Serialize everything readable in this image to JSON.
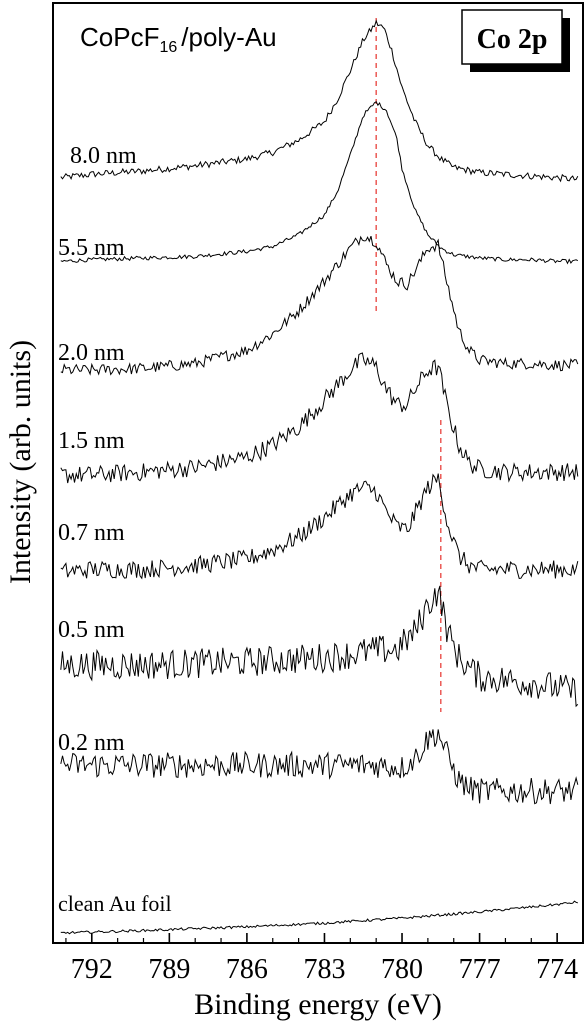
{
  "chart_data": {
    "type": "line",
    "title": "CoPcF16/poly-Au",
    "title_main": "CoPcF",
    "title_sub": "16",
    "title_rest": "/poly-Au",
    "badge": "Co 2p",
    "xlabel": "Binding energy (eV)",
    "ylabel": "Intensity (arb. units)",
    "xlim": [
      793.5,
      773.0
    ],
    "x_reversed": true,
    "xticks": [
      792,
      789,
      786,
      783,
      780,
      777,
      774
    ],
    "y_ticks_shown": false,
    "grid": false,
    "reference_lines": [
      {
        "x": 781.0,
        "color": "#e8413c",
        "style": "dashed"
      },
      {
        "x": 778.5,
        "color": "#e8413c",
        "style": "dashed"
      }
    ],
    "series": [
      {
        "name": "8.0 nm",
        "x": [
          793.2,
          792,
          790,
          788,
          786,
          785,
          784,
          783,
          782.5,
          782,
          781.5,
          781,
          780.7,
          780.4,
          780,
          779.5,
          779,
          778.5,
          778,
          777,
          776,
          775,
          774,
          773.2
        ],
        "y": [
          0.09,
          0.11,
          0.13,
          0.16,
          0.2,
          0.24,
          0.31,
          0.42,
          0.55,
          0.72,
          0.9,
          1.0,
          0.97,
          0.84,
          0.62,
          0.42,
          0.28,
          0.2,
          0.15,
          0.12,
          0.11,
          0.1,
          0.09,
          0.08
        ],
        "noise": 0.02
      },
      {
        "name": "5.5 nm",
        "x": [
          793.2,
          792,
          790,
          788,
          786,
          785,
          784,
          783,
          782.5,
          782,
          781.5,
          781,
          780.6,
          780.2,
          780,
          779.5,
          779,
          778.5,
          778,
          777,
          776,
          775,
          774,
          773.2
        ],
        "y": [
          0.04,
          0.05,
          0.06,
          0.07,
          0.1,
          0.13,
          0.2,
          0.32,
          0.46,
          0.68,
          0.92,
          1.0,
          0.95,
          0.78,
          0.6,
          0.35,
          0.2,
          0.12,
          0.08,
          0.06,
          0.05,
          0.05,
          0.04,
          0.04
        ],
        "noise": 0.012
      },
      {
        "name": "2.0 nm",
        "x": [
          793.2,
          792,
          790,
          788,
          786,
          785,
          784,
          783,
          782,
          781.5,
          781,
          780.6,
          780.2,
          779.8,
          779.5,
          779,
          778.6,
          778.2,
          777.8,
          777.4,
          777,
          776,
          775,
          774,
          773.2
        ],
        "y": [
          0.06,
          0.06,
          0.07,
          0.1,
          0.18,
          0.28,
          0.42,
          0.6,
          0.8,
          0.88,
          0.84,
          0.7,
          0.6,
          0.58,
          0.66,
          0.8,
          0.82,
          0.55,
          0.3,
          0.18,
          0.12,
          0.1,
          0.1,
          0.09,
          0.09
        ],
        "noise": 0.035
      },
      {
        "name": "1.5 nm",
        "x": [
          793.2,
          792,
          790,
          788,
          786,
          785,
          784,
          783,
          782,
          781.5,
          781,
          780.6,
          780.2,
          779.8,
          779.5,
          779,
          778.6,
          778.2,
          777.8,
          777.4,
          777,
          776,
          775,
          774,
          773.2
        ],
        "y": [
          0.08,
          0.08,
          0.1,
          0.13,
          0.2,
          0.28,
          0.4,
          0.58,
          0.78,
          0.85,
          0.8,
          0.65,
          0.55,
          0.55,
          0.65,
          0.78,
          0.8,
          0.5,
          0.28,
          0.16,
          0.12,
          0.1,
          0.1,
          0.1,
          0.1
        ],
        "noise": 0.06
      },
      {
        "name": "0.7 nm",
        "x": [
          793.2,
          792,
          790,
          788,
          786,
          785,
          784,
          783,
          782,
          781.5,
          781,
          780.6,
          780.2,
          779.8,
          779.5,
          779,
          778.6,
          778.2,
          777.8,
          777.4,
          777,
          776,
          775,
          774,
          773.2
        ],
        "y": [
          0.1,
          0.12,
          0.12,
          0.15,
          0.2,
          0.27,
          0.37,
          0.52,
          0.7,
          0.75,
          0.72,
          0.56,
          0.45,
          0.42,
          0.55,
          0.75,
          0.82,
          0.45,
          0.22,
          0.15,
          0.12,
          0.12,
          0.12,
          0.12,
          0.12
        ],
        "noise": 0.07
      },
      {
        "name": "0.5 nm",
        "x": [
          793.2,
          792,
          790,
          788,
          786,
          785,
          784,
          783,
          782,
          781,
          780.2,
          779.5,
          779,
          778.6,
          778.2,
          777.8,
          777.4,
          777,
          776,
          775,
          774,
          773.2
        ],
        "y": [
          0.4,
          0.4,
          0.4,
          0.41,
          0.42,
          0.43,
          0.44,
          0.45,
          0.47,
          0.5,
          0.5,
          0.62,
          0.8,
          0.9,
          0.6,
          0.45,
          0.38,
          0.32,
          0.3,
          0.28,
          0.25,
          0.22
        ],
        "noise": 0.1
      },
      {
        "name": "0.2 nm",
        "x": [
          793.2,
          792,
          790,
          788,
          786,
          785,
          784,
          783,
          782,
          781,
          780,
          779.5,
          779,
          778.6,
          778.2,
          777.8,
          777.4,
          777,
          776,
          775,
          774,
          773.2
        ],
        "y": [
          0.5,
          0.5,
          0.5,
          0.5,
          0.5,
          0.5,
          0.5,
          0.5,
          0.5,
          0.5,
          0.48,
          0.55,
          0.7,
          0.75,
          0.55,
          0.38,
          0.32,
          0.3,
          0.3,
          0.3,
          0.3,
          0.3
        ],
        "noise": 0.1
      },
      {
        "name": "clean Au foil",
        "x": [
          793.2,
          790,
          786,
          783,
          780,
          777,
          774,
          773.2
        ],
        "y": [
          0.0,
          0.04,
          0.1,
          0.16,
          0.24,
          0.34,
          0.46,
          0.5
        ],
        "noise": 0.02
      }
    ]
  }
}
